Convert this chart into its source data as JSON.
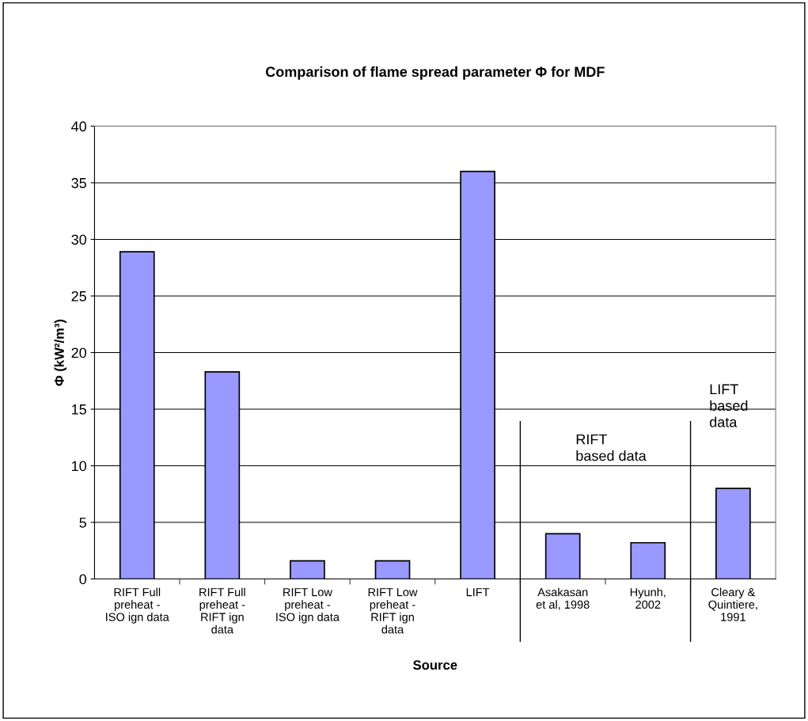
{
  "chart_data": {
    "type": "bar",
    "title": "Comparison of flame spread parameter Φ for MDF",
    "xlabel": "Source",
    "ylabel": "Φ (kW²/m³)",
    "categories": [
      "RIFT Full\npreheat -\nISO ign data",
      "RIFT Full\npreheat -\nRIFT ign\ndata",
      "RIFT Low\npreheat -\nISO ign data",
      "RIFT Low\npreheat -\nRIFT ign\ndata",
      "LIFT",
      "Asakasan\net al, 1998",
      "Hyunh,\n2002",
      "Cleary &\nQuintiere,\n1991"
    ],
    "values": [
      28.9,
      18.3,
      1.6,
      1.6,
      36.0,
      4.0,
      3.2,
      8.0
    ],
    "color": "#9999ff",
    "ylim": [
      0,
      40
    ],
    "yticks": [
      0,
      5,
      10,
      15,
      20,
      25,
      30,
      35,
      40
    ],
    "grid": "y",
    "annotations": [
      "RIFT\nbased data",
      "LIFT\nbased\ndata"
    ]
  }
}
